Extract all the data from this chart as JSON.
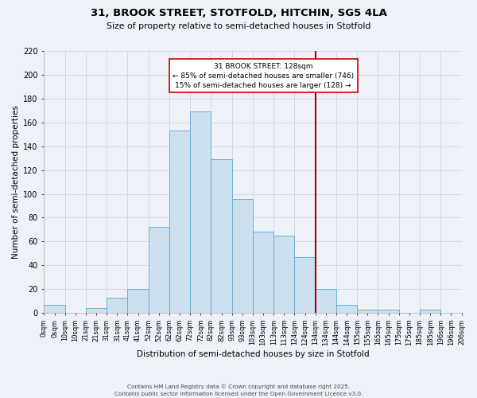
{
  "title1": "31, BROOK STREET, STOTFOLD, HITCHIN, SG5 4LA",
  "title2": "Size of property relative to semi-detached houses in Stotfold",
  "xlabel": "Distribution of semi-detached houses by size in Stotfold",
  "ylabel": "Number of semi-detached properties",
  "bar_labels": [
    "0sqm",
    "10sqm",
    "21sqm",
    "31sqm",
    "41sqm",
    "52sqm",
    "62sqm",
    "72sqm",
    "82sqm",
    "93sqm",
    "103sqm",
    "113sqm",
    "124sqm",
    "134sqm",
    "144sqm",
    "155sqm",
    "165sqm",
    "175sqm",
    "185sqm",
    "196sqm",
    "206sqm"
  ],
  "bar_values": [
    7,
    0,
    4,
    13,
    20,
    72,
    153,
    169,
    129,
    96,
    68,
    65,
    47,
    20,
    7,
    3,
    3,
    0,
    3,
    0
  ],
  "bar_color": "#cce0f0",
  "bar_edge_color": "#6aafd6",
  "vline_x": 13.0,
  "vline_color": "#aa0000",
  "annotation_title": "31 BROOK STREET: 128sqm",
  "annotation_line1": "← 85% of semi-detached houses are smaller (746)",
  "annotation_line2": "15% of semi-detached houses are larger (128) →",
  "annotation_box_color": "#ffffff",
  "annotation_border_color": "#cc0000",
  "ylim": [
    0,
    220
  ],
  "yticks": [
    0,
    20,
    40,
    60,
    80,
    100,
    120,
    140,
    160,
    180,
    200,
    220
  ],
  "footer1": "Contains HM Land Registry data © Crown copyright and database right 2025.",
  "footer2": "Contains public sector information licensed under the Open Government Licence v3.0.",
  "bg_color": "#eef2f8",
  "grid_color": "#d0d8e8"
}
